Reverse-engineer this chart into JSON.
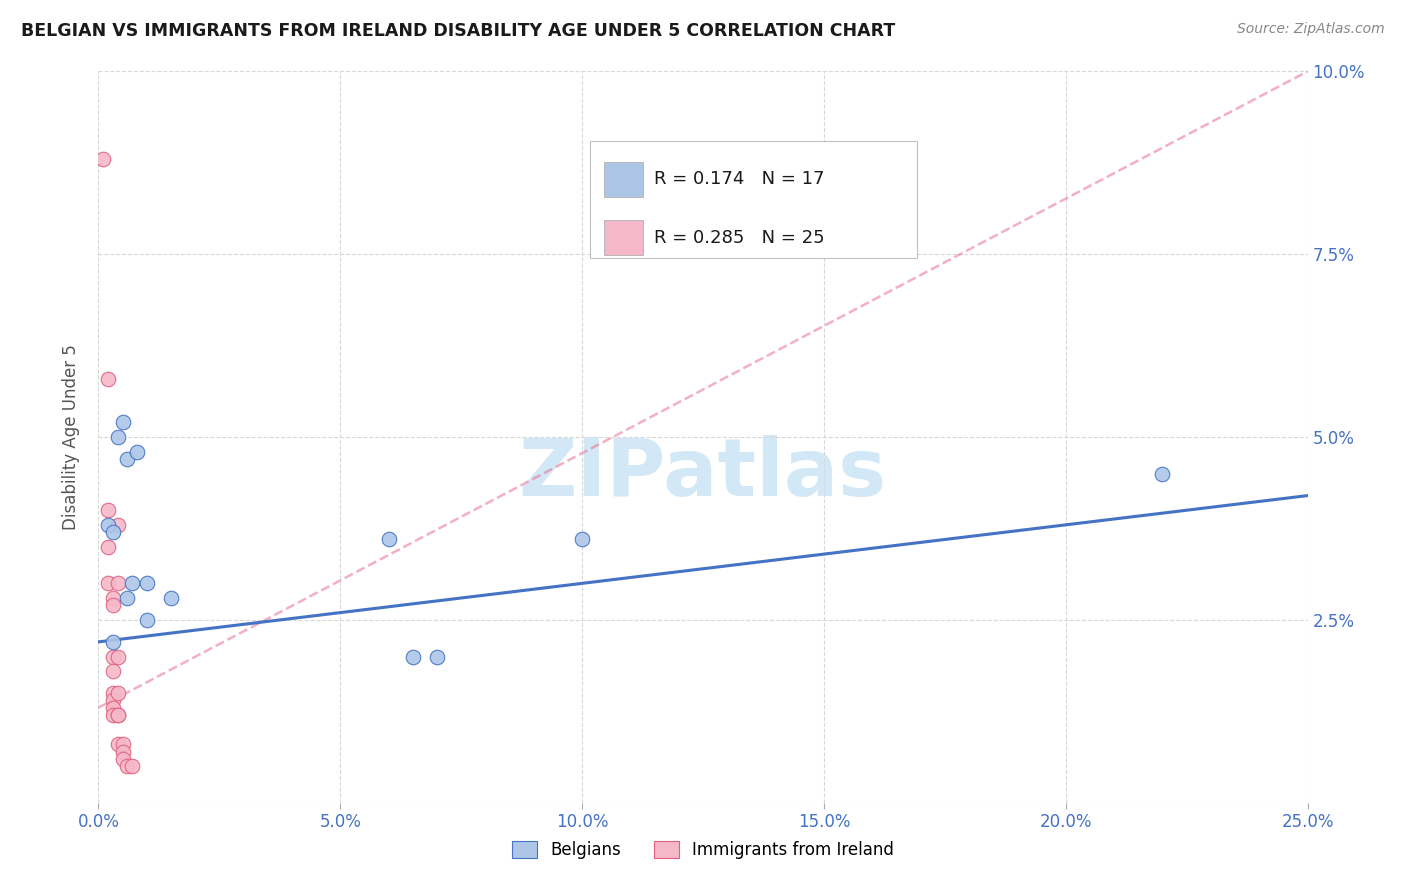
{
  "title": "BELGIAN VS IMMIGRANTS FROM IRELAND DISABILITY AGE UNDER 5 CORRELATION CHART",
  "source": "Source: ZipAtlas.com",
  "ylabel": "Disability Age Under 5",
  "xlim": [
    0.0,
    0.25
  ],
  "ylim": [
    0.0,
    0.1
  ],
  "xticks": [
    0.0,
    0.05,
    0.1,
    0.15,
    0.2,
    0.25
  ],
  "yticks": [
    0.0,
    0.025,
    0.05,
    0.075,
    0.1
  ],
  "xticklabels": [
    "0.0%",
    "5.0%",
    "10.0%",
    "15.0%",
    "20.0%",
    "25.0%"
  ],
  "yticklabels": [
    "",
    "2.5%",
    "5.0%",
    "7.5%",
    "10.0%"
  ],
  "legend_entries": [
    {
      "label": "Belgians",
      "R": "0.174",
      "N": "17",
      "color": "#adc6e8"
    },
    {
      "label": "Immigrants from Ireland",
      "R": "0.285",
      "N": "25",
      "color": "#f5b8c8"
    }
  ],
  "belgian_scatter": [
    [
      0.002,
      0.038
    ],
    [
      0.003,
      0.037
    ],
    [
      0.003,
      0.022
    ],
    [
      0.004,
      0.05
    ],
    [
      0.005,
      0.052
    ],
    [
      0.006,
      0.047
    ],
    [
      0.006,
      0.028
    ],
    [
      0.007,
      0.03
    ],
    [
      0.008,
      0.048
    ],
    [
      0.01,
      0.03
    ],
    [
      0.01,
      0.025
    ],
    [
      0.015,
      0.028
    ],
    [
      0.06,
      0.036
    ],
    [
      0.065,
      0.02
    ],
    [
      0.07,
      0.02
    ],
    [
      0.1,
      0.036
    ],
    [
      0.22,
      0.045
    ]
  ],
  "ireland_scatter": [
    [
      0.001,
      0.088
    ],
    [
      0.002,
      0.058
    ],
    [
      0.002,
      0.04
    ],
    [
      0.002,
      0.035
    ],
    [
      0.002,
      0.03
    ],
    [
      0.003,
      0.028
    ],
    [
      0.003,
      0.027
    ],
    [
      0.003,
      0.02
    ],
    [
      0.003,
      0.018
    ],
    [
      0.003,
      0.015
    ],
    [
      0.003,
      0.014
    ],
    [
      0.003,
      0.013
    ],
    [
      0.003,
      0.012
    ],
    [
      0.004,
      0.038
    ],
    [
      0.004,
      0.03
    ],
    [
      0.004,
      0.02
    ],
    [
      0.004,
      0.015
    ],
    [
      0.004,
      0.012
    ],
    [
      0.004,
      0.012
    ],
    [
      0.004,
      0.008
    ],
    [
      0.005,
      0.008
    ],
    [
      0.005,
      0.007
    ],
    [
      0.005,
      0.006
    ],
    [
      0.006,
      0.005
    ],
    [
      0.007,
      0.005
    ]
  ],
  "belgian_trendline": {
    "x": [
      0.0,
      0.25
    ],
    "y": [
      0.022,
      0.042
    ],
    "color": "#4472c4",
    "linewidth": 2.2
  },
  "ireland_trendline": {
    "x": [
      0.0,
      0.25
    ],
    "y": [
      0.013,
      0.1
    ],
    "color": "#e87090",
    "linewidth": 1.8,
    "linestyle": "--",
    "alpha": 0.55
  },
  "scatter_size": 110,
  "scatter_colors": {
    "belgian": "#adc6e8",
    "ireland": "#f5b8c8"
  },
  "scatter_edgecolors": {
    "belgian": "#4472c4",
    "ireland": "#e06080"
  },
  "watermark_text": "ZIPatlas",
  "watermark_color": "#cce4f5",
  "background_color": "#ffffff",
  "grid_color": "#d8d8d8",
  "grid_linestyle": "--"
}
